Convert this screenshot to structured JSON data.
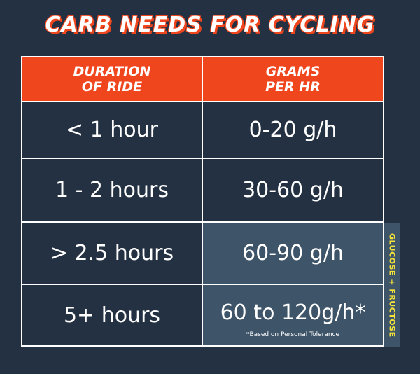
{
  "title": "CARB NEEDS FOR CYCLING",
  "header": {
    "col1_line1": "DURATION",
    "col1_line2": "OF RIDE",
    "col2_line1": "GRAMS",
    "col2_line2": "PER HR"
  },
  "rows": [
    {
      "duration": "< 1 hour",
      "grams": "0-20 g/h"
    },
    {
      "duration": "1 - 2 hours",
      "grams": "30-60 g/h"
    },
    {
      "duration": "> 2.5 hours",
      "grams": "60-90 g/h"
    },
    {
      "duration": "5+ hours",
      "grams": "60 to 120g/h*"
    }
  ],
  "footnote": "*Based on Personal Tolerance",
  "side_label": "GLUCOSE + FRUCTOSE",
  "colors": {
    "background": "#243142",
    "accent": "#f0461e",
    "highlight": "#3e5468",
    "side_text": "#f2e23a"
  }
}
